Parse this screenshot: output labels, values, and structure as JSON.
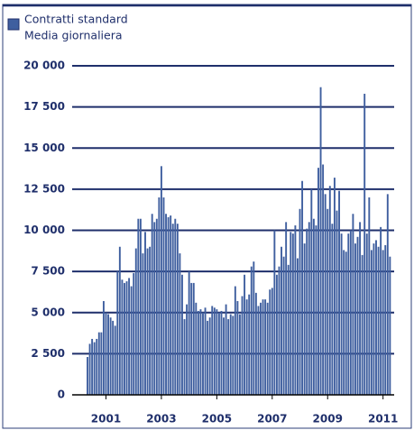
{
  "chart_data": {
    "type": "bar",
    "legend": "Contratti standard",
    "subtitle": "Media giornaliera",
    "color": "#3f5f9f",
    "categories": [
      null,
      null,
      null,
      null,
      null,
      null,
      null,
      null,
      "2001",
      null,
      null,
      null,
      null,
      null,
      null,
      null,
      null,
      null,
      null,
      null,
      null,
      null,
      null,
      null,
      null,
      null,
      null,
      null,
      null,
      null,
      null,
      null,
      "2003",
      null,
      null,
      null,
      null,
      null,
      null,
      null,
      null,
      null,
      null,
      null,
      null,
      null,
      null,
      null,
      null,
      null,
      null,
      null,
      null,
      null,
      null,
      null,
      "2005",
      null,
      null,
      null,
      null,
      null,
      null,
      null,
      null,
      null,
      null,
      null,
      null,
      null,
      null,
      null,
      null,
      null,
      null,
      null,
      null,
      null,
      null,
      null,
      "2007",
      null,
      null,
      null,
      null,
      null,
      null,
      null,
      null,
      null,
      null,
      null,
      null,
      null,
      null,
      null,
      null,
      null,
      null,
      null,
      null,
      null,
      null,
      null,
      "2009",
      null,
      null,
      null,
      null,
      null,
      null,
      null,
      null,
      null,
      null,
      null,
      null,
      null,
      null,
      null,
      null,
      null,
      null,
      null,
      null,
      null,
      null,
      null,
      "2011",
      null,
      null,
      null
    ],
    "values": [
      2300,
      3100,
      3400,
      3200,
      3400,
      3800,
      3800,
      5700,
      5000,
      4900,
      4700,
      4500,
      4200,
      7500,
      9000,
      7000,
      6800,
      6900,
      7100,
      6600,
      7400,
      8900,
      10700,
      10700,
      8600,
      9900,
      8900,
      9000,
      11000,
      10500,
      10700,
      12000,
      13900,
      12000,
      11000,
      10800,
      10900,
      10400,
      10700,
      10400,
      8600,
      7300,
      4600,
      5500,
      7500,
      6800,
      6800,
      5600,
      5100,
      5200,
      5000,
      5300,
      4500,
      4700,
      5400,
      5300,
      5200,
      5000,
      5100,
      4700,
      5500,
      4600,
      4900,
      4800,
      6600,
      5700,
      4900,
      6000,
      7300,
      5800,
      6100,
      7800,
      8100,
      6200,
      5400,
      5600,
      5800,
      5800,
      5600,
      6400,
      6500,
      10000,
      7300,
      7800,
      9000,
      8400,
      10500,
      7900,
      9900,
      9800,
      10300,
      8300,
      11300,
      13000,
      9200,
      10100,
      10500,
      12500,
      10700,
      10300,
      13800,
      18700,
      14000,
      12200,
      11300,
      12700,
      10400,
      13200,
      11200,
      12400,
      9800,
      8800,
      8700,
      9800,
      10000,
      11000,
      9200,
      9600,
      10500,
      8500,
      18300,
      9800,
      12000,
      8800,
      9200,
      9400,
      9000,
      10200,
      8800,
      9100,
      12200,
      8400
    ],
    "ylim": [
      0,
      20000
    ],
    "yticks": [
      0,
      {
        "value": 2500,
        "label": "2 500"
      },
      {
        "value": 5000,
        "label": "5 000"
      },
      {
        "value": 7500,
        "label": "7 500"
      },
      {
        "value": 10000,
        "label": "10 000"
      },
      {
        "value": 12500,
        "label": "12 500"
      },
      {
        "value": 15000,
        "label": "15 000"
      },
      {
        "value": 17500,
        "label": "17 500"
      },
      {
        "value": 20000,
        "label": "20 000"
      }
    ],
    "grid": true
  }
}
